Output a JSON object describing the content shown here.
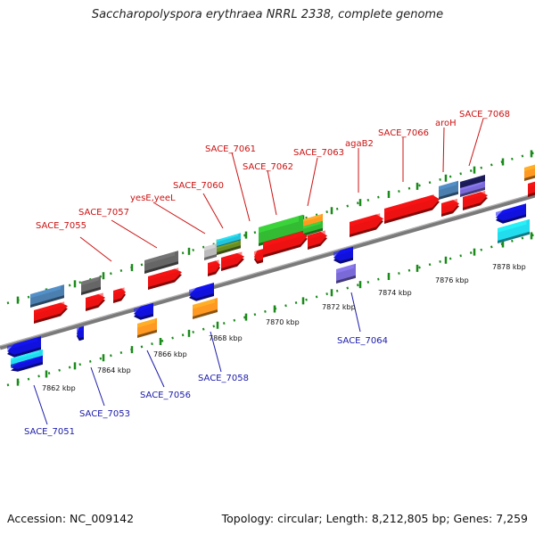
{
  "title": "Saccharopolyspora erythraea NRRL 2338, complete genome",
  "footer": {
    "accession": "Accession: NC_009142",
    "info": "Topology: circular; Length: 8,212,805 bp; Genes: 7,259"
  },
  "colors": {
    "backbone": "#8c8c8c",
    "tick": "#1a8a1a",
    "forward_label": "#cc1111",
    "reverse_label": "#1a1aaa",
    "scale_label": "#111111"
  },
  "scale_labels": [
    "7862 kbp",
    "7864 kbp",
    "7866 kbp",
    "7868 kbp",
    "7870 kbp",
    "7872 kbp",
    "7874 kbp",
    "7876 kbp",
    "7878 kbp"
  ],
  "forward_genes": [
    "SACE_7055",
    "SACE_7057",
    "yesE,yeeL",
    "SACE_7060",
    "SACE_7061",
    "SACE_7062",
    "SACE_7063",
    "agaB2",
    "SACE_7066",
    "aroH",
    "SACE_7068"
  ],
  "reverse_genes": [
    "SACE_7051",
    "SACE_7053",
    "SACE_7056",
    "SACE_7058",
    "SACE_7064"
  ]
}
